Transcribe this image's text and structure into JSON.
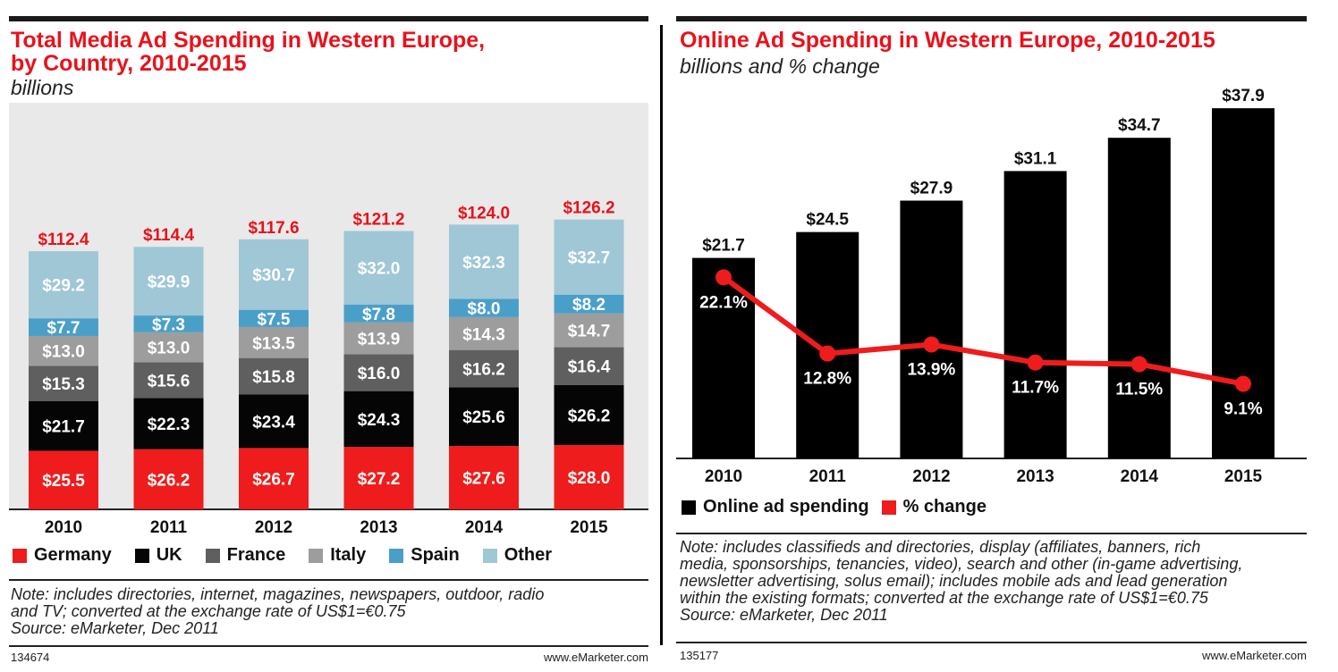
{
  "left": {
    "title_line1": "Total Media Ad Spending in Western Europe,",
    "title_line2": "by Country, 2010-2015",
    "subtitle": "billions",
    "note_line1": "Note: includes directories, internet, magazines, newspapers, outdoor, radio",
    "note_line2": "and TV; converted at the exchange rate of US$1=€0.75",
    "source": "Source: eMarketer, Dec 2011",
    "chart_id": "134674",
    "brand": "www.eMarketer.com"
  },
  "right": {
    "title": "Online Ad Spending in Western Europe, 2010-2015",
    "subtitle": "billions and % change",
    "note_line1": "Note: includes classifieds and directories, display (affiliates, banners, rich",
    "note_line2": "media, sponsorships, tenancies, video), search and other (in-game advertising,",
    "note_line3": "newsletter advertising, solus email); includes mobile ads and lead generation",
    "note_line4": "within the existing formats; converted at the exchange rate of US$1=€0.75",
    "source": "Source: eMarketer, Dec 2011",
    "chart_id": "135177",
    "brand": "www.eMarketer.com"
  },
  "chart_data": [
    {
      "type": "bar",
      "stacked": true,
      "title": "Total Media Ad Spending in Western Europe, by Country, 2010-2015",
      "subtitle": "billions",
      "categories": [
        "2010",
        "2011",
        "2012",
        "2013",
        "2014",
        "2015"
      ],
      "totals": [
        112.4,
        114.4,
        117.6,
        121.2,
        124.0,
        126.2
      ],
      "total_labels": [
        "$112.4",
        "$114.4",
        "$117.6",
        "$121.2",
        "$124.0",
        "$126.2"
      ],
      "series": [
        {
          "name": "Germany",
          "color": "#ee1c1c",
          "text_color": "#ffffff",
          "values": [
            25.5,
            26.2,
            26.7,
            27.2,
            27.6,
            28.0
          ],
          "labels": [
            "$25.5",
            "$26.2",
            "$26.7",
            "$27.2",
            "$27.6",
            "$28.0"
          ]
        },
        {
          "name": "UK",
          "color": "#050505",
          "text_color": "#ffffff",
          "values": [
            21.7,
            22.3,
            23.4,
            24.3,
            25.6,
            26.2
          ],
          "labels": [
            "$21.7",
            "$22.3",
            "$23.4",
            "$24.3",
            "$25.6",
            "$26.2"
          ]
        },
        {
          "name": "France",
          "color": "#5f5f5f",
          "text_color": "#ffffff",
          "values": [
            15.3,
            15.6,
            15.8,
            16.0,
            16.2,
            16.4
          ],
          "labels": [
            "$15.3",
            "$15.6",
            "$15.8",
            "$16.0",
            "$16.2",
            "$16.4"
          ]
        },
        {
          "name": "Italy",
          "color": "#9d9d9d",
          "text_color": "#ffffff",
          "values": [
            13.0,
            13.0,
            13.5,
            13.9,
            14.3,
            14.7
          ],
          "labels": [
            "$13.0",
            "$13.0",
            "$13.5",
            "$13.9",
            "$14.3",
            "$14.7"
          ]
        },
        {
          "name": "Spain",
          "color": "#4a9fc9",
          "text_color": "#ffffff",
          "values": [
            7.7,
            7.3,
            7.5,
            7.8,
            8.0,
            8.2
          ],
          "labels": [
            "$7.7",
            "$7.3",
            "$7.5",
            "$7.8",
            "$8.0",
            "$8.2"
          ]
        },
        {
          "name": "Other",
          "color": "#9fc7d6",
          "text_color": "#ffffff",
          "values": [
            29.2,
            29.9,
            30.7,
            32.0,
            32.3,
            32.7
          ],
          "labels": [
            "$29.2",
            "$29.9",
            "$30.7",
            "$32.0",
            "$32.3",
            "$32.7"
          ]
        }
      ],
      "ylim": [
        0,
        135
      ],
      "legend": "bottom",
      "grid": false
    },
    {
      "type": "bar",
      "title": "Online Ad Spending in Western Europe, 2010-2015",
      "subtitle": "billions and % change",
      "categories": [
        "2010",
        "2011",
        "2012",
        "2013",
        "2014",
        "2015"
      ],
      "series": [
        {
          "name": "Online ad spending",
          "kind": "bar",
          "color": "#000000",
          "values": [
            21.7,
            24.5,
            27.9,
            31.1,
            34.7,
            37.9
          ],
          "labels": [
            "$21.7",
            "$24.5",
            "$27.9",
            "$31.1",
            "$34.7",
            "$37.9"
          ]
        },
        {
          "name": "% change",
          "kind": "line",
          "color": "#ee1c1c",
          "values": [
            22.1,
            12.8,
            13.9,
            11.7,
            11.5,
            9.1
          ],
          "labels": [
            "22.1%",
            "12.8%",
            "13.9%",
            "11.7%",
            "11.5%",
            "9.1%"
          ]
        }
      ],
      "ylim": [
        0,
        40
      ],
      "line_ylim": [
        0,
        30
      ],
      "legend": "bottom-left",
      "grid": false
    }
  ]
}
